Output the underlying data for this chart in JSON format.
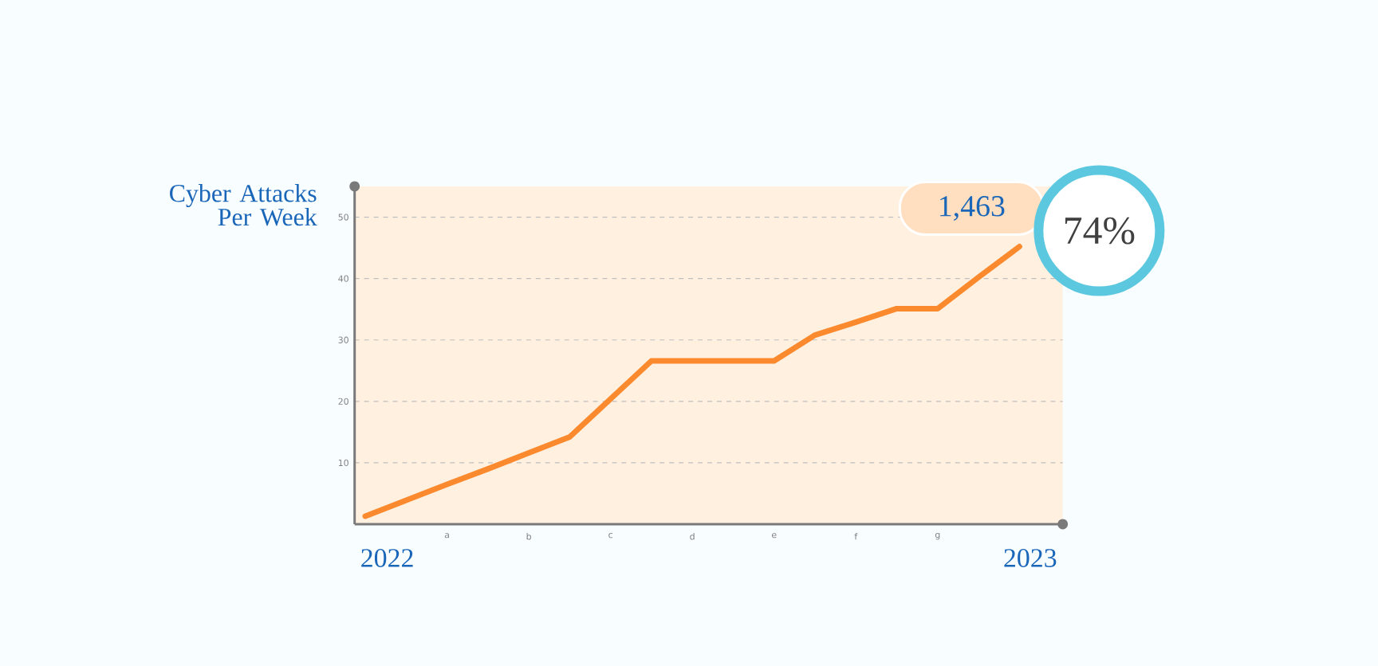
{
  "chart_data": {
    "type": "line",
    "ylabel": "Cyber Attacks Per Week",
    "categories": [
      null,
      null,
      "a",
      null,
      "b",
      null,
      "c",
      null,
      "d",
      null,
      "e",
      null,
      "f",
      null,
      "g",
      null,
      null,
      null
    ],
    "series": [
      {
        "color": "#fb8a2e",
        "values": [
          1.3,
          3.9,
          6.5,
          9.0,
          11.6,
          14.2,
          20.4,
          26.6,
          26.6,
          26.6,
          26.6,
          30.8,
          32.9,
          35.1,
          35.1,
          40.2,
          45.2,
          null
        ]
      }
    ],
    "ylim": [
      0,
      55
    ],
    "yticks": [
      10,
      20,
      30,
      40,
      50
    ],
    "grid": "y",
    "marker": "none",
    "line_style": "solid",
    "annotations": [
      "1,463",
      "74%",
      "2022",
      "2023"
    ]
  }
}
